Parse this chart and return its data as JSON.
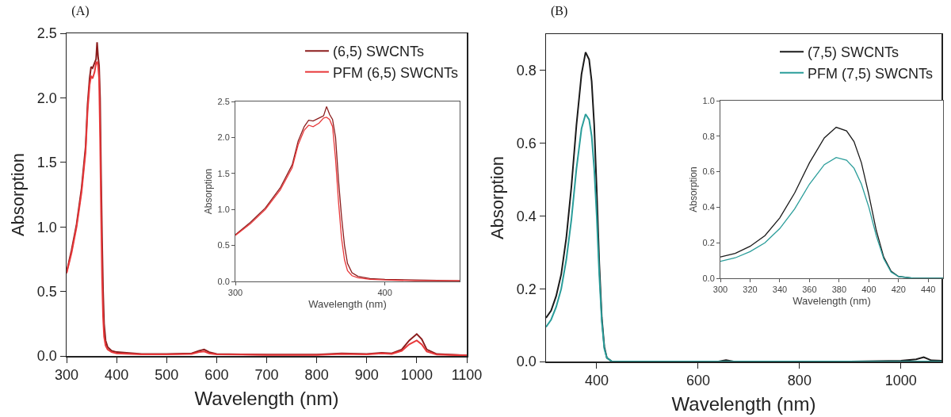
{
  "chart_data": [
    {
      "type": "line",
      "title": "(A)",
      "xlabel": "Wavelength (nm)",
      "ylabel": "Absorption",
      "xlim": [
        300,
        1100
      ],
      "xticks": [
        300,
        400,
        500,
        600,
        700,
        800,
        900,
        1000,
        1100
      ],
      "ylim": [
        0,
        2.5
      ],
      "yticks": [
        {
          "value": 0,
          "label": "0.0"
        },
        0.5,
        {
          "value": 1,
          "label": "1.0"
        },
        1.5,
        {
          "value": 2,
          "label": "2.0"
        },
        2.5
      ],
      "legend": "top right",
      "series": [
        {
          "name": "(6,5) SWCNTs",
          "color": "#8b1c1c",
          "x": [
            300,
            310,
            320,
            330,
            338,
            342,
            346,
            349,
            352,
            356,
            359,
            361,
            363,
            365,
            367,
            369,
            371,
            373,
            375,
            378,
            382,
            390,
            400,
            450,
            500,
            550,
            565,
            575,
            585,
            600,
            650,
            700,
            800,
            850,
            900,
            930,
            950,
            970,
            985,
            1000,
            1010,
            1020,
            1040,
            1100
          ],
          "values": [
            0.65,
            0.82,
            1.02,
            1.3,
            1.62,
            1.95,
            2.15,
            2.24,
            2.23,
            2.27,
            2.3,
            2.43,
            2.32,
            2.25,
            2.0,
            1.4,
            0.9,
            0.5,
            0.25,
            0.12,
            0.07,
            0.04,
            0.03,
            0.015,
            0.015,
            0.02,
            0.04,
            0.05,
            0.03,
            0.015,
            0.012,
            0.01,
            0.01,
            0.02,
            0.015,
            0.025,
            0.02,
            0.05,
            0.12,
            0.17,
            0.13,
            0.05,
            0.015,
            0.005
          ]
        },
        {
          "name": "PFM (6,5) SWCNTs",
          "color": "#e8383a",
          "x": [
            300,
            310,
            320,
            330,
            338,
            342,
            346,
            349,
            352,
            356,
            359,
            361,
            363,
            365,
            367,
            369,
            371,
            373,
            375,
            378,
            382,
            390,
            400,
            450,
            500,
            550,
            565,
            575,
            585,
            600,
            650,
            700,
            800,
            850,
            900,
            930,
            950,
            970,
            985,
            1000,
            1010,
            1020,
            1040,
            1100
          ],
          "values": [
            0.64,
            0.8,
            1.0,
            1.27,
            1.58,
            1.9,
            2.1,
            2.17,
            2.15,
            2.2,
            2.27,
            2.28,
            2.25,
            2.15,
            1.7,
            1.1,
            0.6,
            0.3,
            0.15,
            0.08,
            0.05,
            0.03,
            0.02,
            0.012,
            0.012,
            0.015,
            0.03,
            0.035,
            0.02,
            0.012,
            0.01,
            0.008,
            0.008,
            0.015,
            0.012,
            0.02,
            0.015,
            0.04,
            0.09,
            0.12,
            0.09,
            0.035,
            0.01,
            0.004
          ]
        }
      ]
    },
    {
      "type": "line",
      "xlabel": "Wavelength (nm)",
      "ylabel": "Absorption",
      "xlim": [
        300,
        450
      ],
      "xticks": [
        300,
        400
      ],
      "ylim": [
        0,
        2.5
      ],
      "yticks": [
        {
          "value": 0,
          "label": "0.0"
        },
        0.5,
        {
          "value": 1,
          "label": "1.0"
        },
        1.5,
        {
          "value": 2,
          "label": "2.0"
        },
        2.5
      ],
      "series": [
        {
          "color": "#8b1c1c",
          "x": [
            300,
            310,
            320,
            330,
            338,
            342,
            346,
            349,
            352,
            356,
            359,
            361,
            363,
            365,
            367,
            369,
            371,
            373,
            375,
            378,
            382,
            390,
            400,
            420,
            450
          ],
          "values": [
            0.65,
            0.82,
            1.02,
            1.3,
            1.62,
            1.95,
            2.15,
            2.24,
            2.23,
            2.27,
            2.3,
            2.43,
            2.32,
            2.25,
            2.0,
            1.4,
            0.9,
            0.5,
            0.25,
            0.12,
            0.07,
            0.04,
            0.03,
            0.02,
            0.01
          ]
        },
        {
          "color": "#e8383a",
          "x": [
            300,
            310,
            320,
            330,
            338,
            342,
            346,
            349,
            352,
            356,
            359,
            361,
            363,
            365,
            367,
            369,
            371,
            373,
            375,
            378,
            382,
            390,
            400,
            420,
            450
          ],
          "values": [
            0.64,
            0.8,
            1.0,
            1.27,
            1.58,
            1.9,
            2.1,
            2.17,
            2.15,
            2.2,
            2.27,
            2.28,
            2.25,
            2.15,
            1.7,
            1.1,
            0.6,
            0.3,
            0.15,
            0.08,
            0.05,
            0.03,
            0.02,
            0.01,
            0.01
          ]
        }
      ]
    },
    {
      "type": "line",
      "title": "(B)",
      "xlabel": "Wavelength (nm)",
      "ylabel": "Absorption",
      "xlim": [
        300,
        1080
      ],
      "xticks": [
        400,
        600,
        800,
        1000
      ],
      "ylim": [
        0,
        0.9
      ],
      "yticks": [
        {
          "value": 0,
          "label": "0.0"
        },
        0.2,
        0.4,
        0.6,
        0.8
      ],
      "legend": "top right",
      "series": [
        {
          "name": "(7,5) SWCNTs",
          "color": "#1a1a1a",
          "x": [
            300,
            310,
            320,
            330,
            340,
            350,
            360,
            370,
            378,
            385,
            390,
            395,
            400,
            405,
            410,
            415,
            420,
            430,
            500,
            640,
            655,
            670,
            900,
            1000,
            1030,
            1045,
            1060,
            1080
          ],
          "values": [
            0.12,
            0.14,
            0.18,
            0.24,
            0.34,
            0.48,
            0.65,
            0.79,
            0.85,
            0.83,
            0.77,
            0.65,
            0.47,
            0.27,
            0.12,
            0.04,
            0.01,
            0,
            0,
            0,
            0.004,
            0,
            0,
            0.002,
            0.006,
            0.012,
            0.003,
            0.002
          ]
        },
        {
          "name": "PFM (7,5) SWCNTs",
          "color": "#2a9d9a",
          "x": [
            300,
            310,
            320,
            330,
            340,
            350,
            360,
            370,
            378,
            385,
            390,
            395,
            400,
            405,
            410,
            415,
            420,
            430,
            500,
            1080
          ],
          "values": [
            0.095,
            0.115,
            0.15,
            0.2,
            0.28,
            0.39,
            0.53,
            0.64,
            0.68,
            0.665,
            0.62,
            0.53,
            0.4,
            0.24,
            0.11,
            0.035,
            0.01,
            0,
            0,
            0
          ]
        }
      ]
    },
    {
      "type": "line",
      "xlabel": "Wavelength (nm)",
      "ylabel": "Absorption",
      "xlim": [
        300,
        450
      ],
      "xticks": [
        300,
        320,
        340,
        360,
        380,
        400,
        420,
        440
      ],
      "ylim": [
        0,
        1.0
      ],
      "yticks": [
        {
          "value": 0,
          "label": "0.0"
        },
        0.2,
        0.4,
        0.6,
        0.8,
        {
          "value": 1,
          "label": "1.0"
        }
      ],
      "series": [
        {
          "color": "#1a1a1a",
          "x": [
            300,
            310,
            320,
            330,
            340,
            350,
            360,
            370,
            378,
            385,
            390,
            395,
            400,
            405,
            410,
            415,
            420,
            430,
            450
          ],
          "values": [
            0.12,
            0.14,
            0.18,
            0.24,
            0.34,
            0.48,
            0.65,
            0.79,
            0.85,
            0.83,
            0.77,
            0.65,
            0.47,
            0.27,
            0.12,
            0.04,
            0.01,
            0,
            0
          ]
        },
        {
          "color": "#2a9d9a",
          "x": [
            300,
            310,
            320,
            330,
            340,
            350,
            360,
            370,
            378,
            385,
            390,
            395,
            400,
            405,
            410,
            415,
            420,
            430,
            450
          ],
          "values": [
            0.095,
            0.115,
            0.15,
            0.2,
            0.28,
            0.39,
            0.53,
            0.64,
            0.68,
            0.665,
            0.62,
            0.53,
            0.4,
            0.24,
            0.11,
            0.035,
            0.01,
            0,
            0
          ]
        }
      ]
    }
  ]
}
